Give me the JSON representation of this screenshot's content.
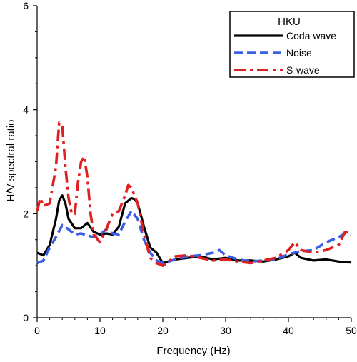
{
  "chart_data": {
    "type": "line",
    "title": "",
    "xlabel": "Frequency (Hz)",
    "ylabel": "H/V spectral ratio",
    "xlim": [
      0,
      50
    ],
    "ylim": [
      0,
      6
    ],
    "xticks": [
      0,
      10,
      20,
      30,
      40,
      50
    ],
    "yticks": [
      0,
      2,
      4,
      6
    ],
    "grid": false,
    "legend": {
      "title": "HKU",
      "placement": "top-right",
      "entries": [
        "Coda wave",
        "Noise",
        "S-wave"
      ]
    },
    "series": [
      {
        "name": "Coda wave",
        "color": "#000000",
        "style": "solid",
        "x": [
          0,
          1,
          2,
          3,
          3.5,
          4,
          4.5,
          5,
          6,
          7,
          8,
          9,
          10,
          11,
          12,
          13,
          14,
          15,
          15.5,
          16,
          17,
          18,
          19,
          20,
          22,
          24,
          26,
          28,
          30,
          32,
          34,
          36,
          38,
          40,
          41,
          42,
          44,
          46,
          48,
          50
        ],
        "y": [
          1.25,
          1.2,
          1.4,
          1.9,
          2.25,
          2.35,
          2.2,
          1.9,
          1.72,
          1.72,
          1.82,
          1.65,
          1.6,
          1.62,
          1.6,
          1.75,
          2.2,
          2.3,
          2.28,
          2.2,
          1.75,
          1.35,
          1.25,
          1.05,
          1.12,
          1.15,
          1.18,
          1.12,
          1.15,
          1.1,
          1.1,
          1.08,
          1.12,
          1.18,
          1.25,
          1.15,
          1.1,
          1.12,
          1.08,
          1.06
        ]
      },
      {
        "name": "Noise",
        "color": "#3b5ee6",
        "style": "dashed",
        "x": [
          0,
          1,
          2,
          3,
          4,
          5,
          6,
          7,
          8,
          9,
          10,
          11,
          12,
          13,
          14,
          15,
          16,
          17,
          18,
          19,
          20,
          22,
          24,
          26,
          28,
          29,
          30,
          32,
          34,
          36,
          38,
          40,
          42,
          44,
          46,
          48,
          49,
          50
        ],
        "y": [
          1.05,
          1.1,
          1.35,
          1.55,
          1.78,
          1.7,
          1.6,
          1.62,
          1.58,
          1.55,
          1.6,
          1.7,
          1.62,
          1.6,
          1.85,
          2.05,
          1.9,
          1.5,
          1.25,
          1.1,
          1.05,
          1.12,
          1.18,
          1.2,
          1.25,
          1.3,
          1.2,
          1.12,
          1.08,
          1.1,
          1.12,
          1.22,
          1.28,
          1.3,
          1.45,
          1.55,
          1.62,
          1.6
        ]
      },
      {
        "name": "S-wave",
        "color": "#e02020",
        "style": "dashdot",
        "x": [
          0,
          0.5,
          1,
          2,
          3,
          3.5,
          4,
          4.5,
          5,
          5.5,
          6,
          6.5,
          7,
          7.5,
          8,
          8.5,
          9,
          10,
          11,
          12,
          13,
          14,
          14.5,
          15,
          16,
          17,
          18,
          19,
          20,
          22,
          24,
          26,
          28,
          30,
          32,
          34,
          36,
          38,
          40,
          41,
          42,
          44,
          46,
          48,
          49,
          50
        ],
        "y": [
          2.05,
          2.3,
          2.15,
          2.2,
          2.9,
          3.75,
          3.7,
          2.9,
          2.3,
          2.0,
          2.0,
          2.6,
          3.0,
          3.1,
          2.7,
          2.0,
          1.6,
          1.45,
          1.7,
          2.0,
          2.05,
          2.35,
          2.55,
          2.5,
          2.2,
          1.6,
          1.15,
          1.05,
          1.0,
          1.18,
          1.2,
          1.15,
          1.1,
          1.12,
          1.08,
          1.05,
          1.1,
          1.15,
          1.3,
          1.45,
          1.3,
          1.25,
          1.3,
          1.4,
          1.65,
          1.62
        ]
      }
    ]
  }
}
